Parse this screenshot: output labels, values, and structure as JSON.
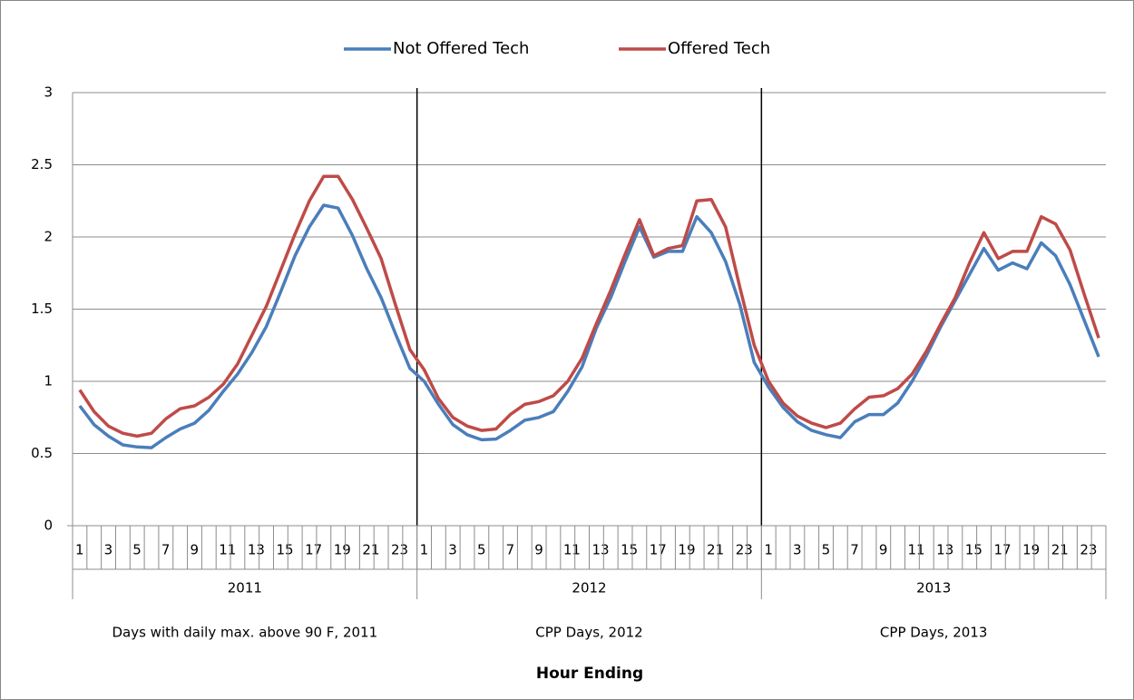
{
  "chart_data": {
    "type": "line",
    "x_title": "Hour Ending",
    "categories": [
      "1",
      null,
      "3",
      null,
      "5",
      null,
      "7",
      null,
      "9",
      null,
      "11",
      null,
      "13",
      null,
      "15",
      null,
      "17",
      null,
      "19",
      null,
      "21",
      null,
      "23",
      null,
      "1",
      null,
      "3",
      null,
      "5",
      null,
      "7",
      null,
      "9",
      null,
      "11",
      null,
      "13",
      null,
      "15",
      null,
      "17",
      null,
      "19",
      null,
      "21",
      null,
      "23",
      null,
      "1",
      null,
      "3",
      null,
      "5",
      null,
      "7",
      null,
      "9",
      null,
      "11",
      null,
      "13",
      null,
      "15",
      null,
      "17",
      null,
      "19",
      null,
      "21",
      null,
      "23",
      null
    ],
    "groups": [
      "2011",
      "2012",
      "2013"
    ],
    "group_descriptions": [
      "Days with daily max. above 90 F, 2011",
      "CPP Days, 2012",
      "CPP Days, 2013"
    ],
    "series": [
      {
        "name": "Not Offered Tech",
        "color": "#4a7ebb",
        "values": [
          0.83,
          0.7,
          0.62,
          0.56,
          0.545,
          0.54,
          0.61,
          0.67,
          0.71,
          0.8,
          0.93,
          1.05,
          1.2,
          1.38,
          1.62,
          1.87,
          2.07,
          2.22,
          2.2,
          2.01,
          1.78,
          1.58,
          1.33,
          1.09,
          1.0,
          0.84,
          0.7,
          0.63,
          0.595,
          0.6,
          0.66,
          0.73,
          0.75,
          0.79,
          0.93,
          1.1,
          1.37,
          1.58,
          1.83,
          2.07,
          1.86,
          1.9,
          1.9,
          2.14,
          2.03,
          1.83,
          1.53,
          1.13,
          0.96,
          0.82,
          0.72,
          0.66,
          0.63,
          0.61,
          0.72,
          0.77,
          0.77,
          0.85,
          1.0,
          1.18,
          1.38,
          1.56,
          1.74,
          1.92,
          1.77,
          1.82,
          1.78,
          1.96,
          1.87,
          1.67,
          1.42,
          1.17
        ]
      },
      {
        "name": "Offered Tech",
        "color": "#be4b48",
        "values": [
          0.94,
          0.79,
          0.69,
          0.64,
          0.62,
          0.64,
          0.74,
          0.81,
          0.83,
          0.89,
          0.98,
          1.12,
          1.32,
          1.52,
          1.77,
          2.02,
          2.25,
          2.42,
          2.42,
          2.26,
          2.06,
          1.85,
          1.53,
          1.22,
          1.08,
          0.88,
          0.75,
          0.69,
          0.66,
          0.67,
          0.77,
          0.84,
          0.86,
          0.9,
          1.0,
          1.16,
          1.4,
          1.63,
          1.88,
          2.12,
          1.87,
          1.92,
          1.94,
          2.25,
          2.26,
          2.07,
          1.65,
          1.25,
          1.0,
          0.85,
          0.76,
          0.71,
          0.68,
          0.71,
          0.81,
          0.89,
          0.9,
          0.95,
          1.05,
          1.21,
          1.4,
          1.58,
          1.82,
          2.03,
          1.85,
          1.9,
          1.9,
          2.14,
          2.09,
          1.91,
          1.6,
          1.3
        ]
      }
    ],
    "ylim": [
      0,
      3
    ],
    "yticks": [
      0,
      0.5,
      1,
      1.5,
      2,
      2.5,
      3
    ],
    "grid": true,
    "legend": "top"
  }
}
